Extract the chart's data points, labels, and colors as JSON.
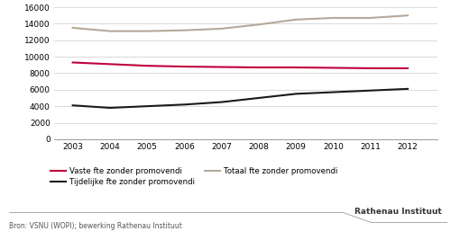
{
  "years": [
    2003,
    2004,
    2005,
    2006,
    2007,
    2008,
    2009,
    2010,
    2011,
    2012
  ],
  "vaste": [
    9300,
    9100,
    8900,
    8800,
    8750,
    8700,
    8700,
    8650,
    8600,
    8600
  ],
  "tijdelijke": [
    4100,
    3800,
    4000,
    4200,
    4500,
    5000,
    5500,
    5700,
    5900,
    6100
  ],
  "totaal": [
    13500,
    13100,
    13100,
    13200,
    13400,
    13900,
    14500,
    14700,
    14700,
    15000
  ],
  "vaste_color": "#c0003c",
  "tijdelijke_color": "#1a1a1a",
  "totaal_color": "#b5a898",
  "ylim": [
    0,
    16000
  ],
  "yticks": [
    0,
    2000,
    4000,
    6000,
    8000,
    10000,
    12000,
    14000,
    16000
  ],
  "legend_labels": [
    "Vaste fte zonder promovendi",
    "Tijdelijke fte zonder promovendi",
    "Totaal fte zonder promovendi"
  ],
  "source_text": "Bron: VSNU (WOPI); bewerking Rathenau Instituut",
  "logo_text": "Rathenau Instituut",
  "bg_color": "#ffffff",
  "grid_color": "#cccccc",
  "line_width": 1.5
}
